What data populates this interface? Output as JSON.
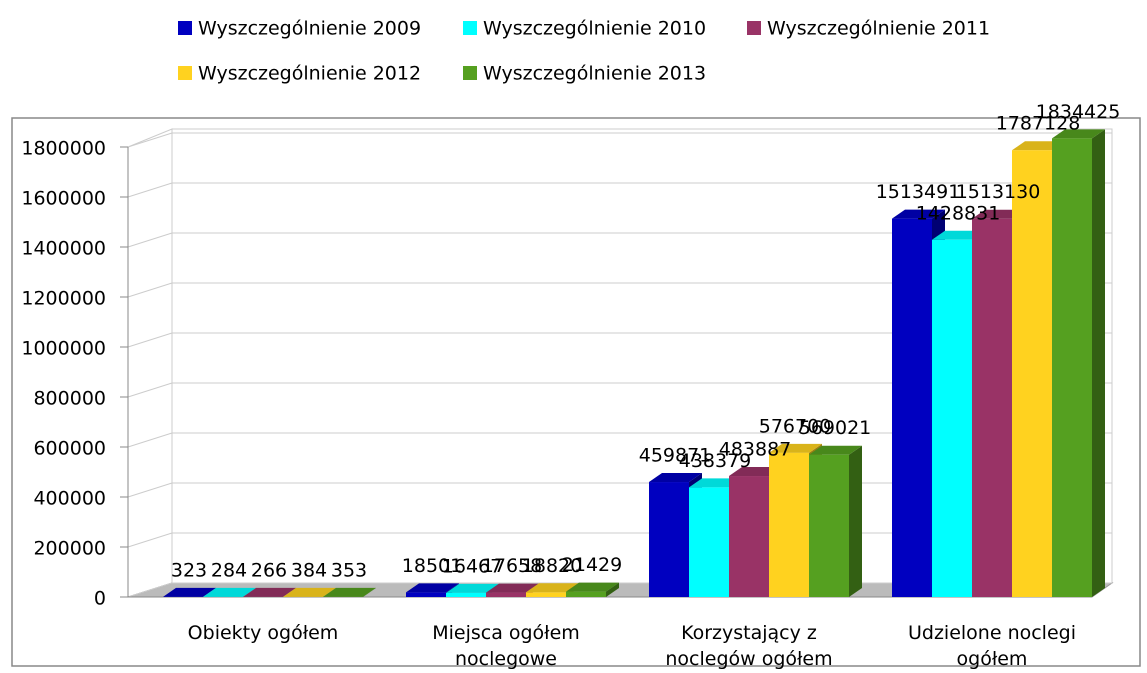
{
  "chart_data": {
    "type": "bar3d",
    "categories": [
      "Obiekty ogółem",
      "Miejsca ogółem noclegowe",
      "Korzystający z noclegów ogółem",
      "Udzielone noclegi ogółem"
    ],
    "series": [
      {
        "name": "Wyszczególnienie 2009",
        "color": "#0000c0",
        "values": [
          323,
          18501,
          459871,
          1513491
        ]
      },
      {
        "name": "Wyszczególnienie 2010",
        "color": "#00ffff",
        "values": [
          284,
          16467,
          438379,
          1428831
        ]
      },
      {
        "name": "Wyszczególnienie 2011",
        "color": "#993366",
        "values": [
          266,
          17658,
          483887,
          1513130
        ]
      },
      {
        "name": "Wyszczególnienie 2012",
        "color": "#ffd21f",
        "values": [
          384,
          18820,
          576700,
          1787128
        ]
      },
      {
        "name": "Wyszczególnienie 2013",
        "color": "#55a020",
        "values": [
          353,
          21429,
          569021,
          1834425
        ]
      }
    ],
    "ylim": [
      0,
      1800000
    ],
    "yticks": [
      0,
      200000,
      400000,
      600000,
      800000,
      1000000,
      1200000,
      1400000,
      1600000,
      1800000
    ],
    "grid": true,
    "legend": "top"
  }
}
